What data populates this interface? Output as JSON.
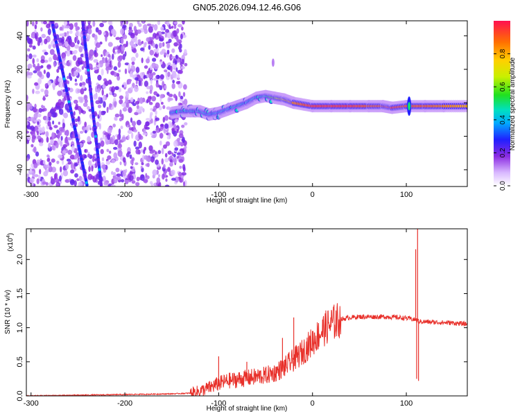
{
  "figure_title": "GN05.2026.094.12.46.G06",
  "colors": {
    "snr_line": "#e8302a",
    "spectrogram_low": "#8a3cf0",
    "spectrogram_high": "#ff1a1a"
  },
  "chart_data": [
    {
      "type": "heatmap",
      "title": "GN05.2026.094.12.46.G06",
      "xlabel": "Height of straight line (km)",
      "ylabel": "Frequency (Hz)",
      "xlim": [
        -305,
        165
      ],
      "ylim": [
        -50,
        49
      ],
      "xticks": [
        -300,
        -200,
        -100,
        0,
        100
      ],
      "yticks": [
        -40,
        -20,
        0,
        20,
        40
      ],
      "xtick_labels": [
        "-300",
        "-200",
        "-100",
        "0",
        "100"
      ],
      "ytick_labels": [
        "-40",
        "-20",
        "0",
        "20",
        "40"
      ],
      "colorbar": {
        "label": "Normalized spectral amplitude",
        "range": [
          0.0,
          1.0
        ],
        "ticks": [
          0.0,
          0.2,
          0.4,
          0.6,
          0.8
        ],
        "tick_labels": [
          "0.0",
          "0.2",
          "0.4",
          "0.6",
          "0.8"
        ]
      },
      "ridge": [
        {
          "x": -150,
          "f": -6,
          "a": 0.35
        },
        {
          "x": -140,
          "f": -5,
          "a": 0.45
        },
        {
          "x": -130,
          "f": -5,
          "a": 0.4
        },
        {
          "x": -120,
          "f": -5,
          "a": 0.45
        },
        {
          "x": -110,
          "f": -7,
          "a": 0.4
        },
        {
          "x": -100,
          "f": -6,
          "a": 0.4
        },
        {
          "x": -90,
          "f": -4,
          "a": 0.4
        },
        {
          "x": -80,
          "f": -2,
          "a": 0.45
        },
        {
          "x": -70,
          "f": 0,
          "a": 0.4
        },
        {
          "x": -60,
          "f": 3,
          "a": 0.45
        },
        {
          "x": -50,
          "f": 4,
          "a": 0.45
        },
        {
          "x": -40,
          "f": 3,
          "a": 0.6
        },
        {
          "x": -30,
          "f": 2,
          "a": 0.75
        },
        {
          "x": -20,
          "f": 0,
          "a": 0.85
        },
        {
          "x": 0,
          "f": -2,
          "a": 0.95
        },
        {
          "x": 20,
          "f": -2,
          "a": 0.95
        },
        {
          "x": 40,
          "f": -2,
          "a": 0.95
        },
        {
          "x": 60,
          "f": -2,
          "a": 0.9
        },
        {
          "x": 75,
          "f": -2,
          "a": 0.9
        },
        {
          "x": 85,
          "f": -3,
          "a": 0.95
        },
        {
          "x": 100,
          "f": -2,
          "a": 0.9
        },
        {
          "x": 120,
          "f": -2,
          "a": 0.9
        },
        {
          "x": 140,
          "f": -2,
          "a": 0.85
        },
        {
          "x": 165,
          "f": -2,
          "a": 0.8
        }
      ]
    },
    {
      "type": "line",
      "xlabel": "Height of straight line (km)",
      "ylabel": "SNR (10 * v/v)",
      "y_multiplier_label": "(x10",
      "y_multiplier_exp": "4",
      "y_multiplier_close": ")",
      "xlim": [
        -305,
        165
      ],
      "ylim": [
        0.0,
        2.45
      ],
      "xticks": [
        -300,
        -200,
        -100,
        0,
        100
      ],
      "yticks": [
        0.0,
        0.5,
        1.0,
        1.5,
        2.0
      ],
      "xtick_labels": [
        "-300",
        "-200",
        "-100",
        "0",
        "100"
      ],
      "ytick_labels": [
        "0.0",
        "0.5",
        "1.0",
        "1.5",
        "2.0"
      ],
      "series": [
        {
          "name": "SNR",
          "x": [
            -305,
            -250,
            -200,
            -150,
            -130,
            -120,
            -110,
            -100,
            -90,
            -80,
            -70,
            -60,
            -50,
            -40,
            -30,
            -20,
            -10,
            0,
            10,
            20,
            30,
            40,
            50,
            60,
            70,
            80,
            90,
            100,
            108,
            110,
            112,
            115,
            130,
            150,
            165
          ],
          "y": [
            0.0,
            0.01,
            0.02,
            0.03,
            0.04,
            0.07,
            0.12,
            0.18,
            0.22,
            0.24,
            0.26,
            0.28,
            0.3,
            0.34,
            0.42,
            0.53,
            0.65,
            0.8,
            0.95,
            1.06,
            1.12,
            1.15,
            1.16,
            1.16,
            1.16,
            1.16,
            1.15,
            1.14,
            1.12,
            1.12,
            1.1,
            1.09,
            1.08,
            1.07,
            1.05
          ]
        }
      ],
      "spikes": [
        {
          "x": 110,
          "y": 2.15
        },
        {
          "x": 111,
          "y": 0.25
        },
        {
          "x": 112,
          "y": 2.45
        },
        {
          "x": 113,
          "y": 0.22
        },
        {
          "x": -100,
          "y": 0.58
        },
        {
          "x": -70,
          "y": 0.5
        },
        {
          "x": -32,
          "y": 0.85
        },
        {
          "x": -20,
          "y": 1.15
        }
      ]
    }
  ]
}
